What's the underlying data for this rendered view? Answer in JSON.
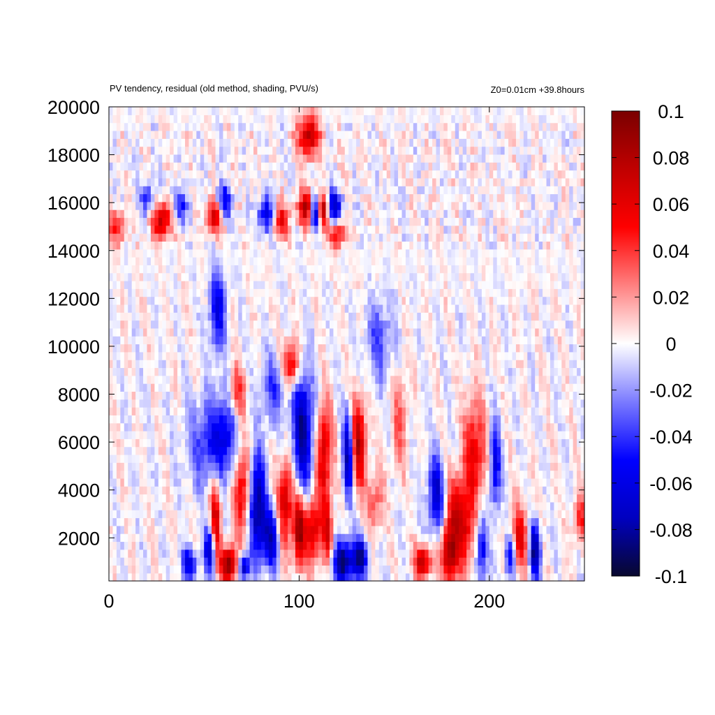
{
  "chart_data": {
    "type": "heatmap",
    "title": "PV tendency, residual (old method, shading, PVU/s)",
    "annotation": "Z0=0.01cm   +39.8hours",
    "xlabel": "",
    "ylabel": "",
    "xlim": [
      0,
      250
    ],
    "ylim": [
      200,
      20000
    ],
    "x_ticks": [
      0,
      100,
      200
    ],
    "y_ticks": [
      2000,
      4000,
      6000,
      8000,
      10000,
      12000,
      14000,
      16000,
      18000,
      20000
    ],
    "colorbar": {
      "range": [
        -0.1,
        0.1
      ],
      "ticks": [
        "0.1",
        "0.08",
        "0.06",
        "0.04",
        "0.02",
        "0",
        "-0.02",
        "-0.04",
        "-0.06",
        "-0.08",
        "-0.1"
      ],
      "colormap": [
        "#08082e",
        "#0000c0",
        "#0000ff",
        "#7b7bff",
        "#ffffff",
        "#ff8080",
        "#ff0000",
        "#c00000",
        "#7a0000"
      ]
    },
    "grid": {
      "nx": 125,
      "ny": 60,
      "features": [
        {
          "x": 105,
          "y": 18800,
          "sx": 4,
          "sy": 600,
          "v": 0.08
        },
        {
          "x": 20,
          "y": 16200,
          "sx": 3,
          "sy": 500,
          "v": -0.04
        },
        {
          "x": 28,
          "y": 15300,
          "sx": 4,
          "sy": 500,
          "v": 0.07
        },
        {
          "x": 37,
          "y": 15800,
          "sx": 3,
          "sy": 500,
          "v": -0.05
        },
        {
          "x": 56,
          "y": 15500,
          "sx": 3,
          "sy": 500,
          "v": 0.08
        },
        {
          "x": 60,
          "y": 16000,
          "sx": 3,
          "sy": 500,
          "v": -0.07
        },
        {
          "x": 83,
          "y": 15500,
          "sx": 3,
          "sy": 500,
          "v": -0.07
        },
        {
          "x": 90,
          "y": 15300,
          "sx": 3,
          "sy": 500,
          "v": 0.06
        },
        {
          "x": 104,
          "y": 15800,
          "sx": 3,
          "sy": 500,
          "v": 0.09
        },
        {
          "x": 108,
          "y": 15600,
          "sx": 2,
          "sy": 500,
          "v": -0.09
        },
        {
          "x": 113,
          "y": 15700,
          "sx": 2,
          "sy": 500,
          "v": 0.09
        },
        {
          "x": 118,
          "y": 15800,
          "sx": 3,
          "sy": 500,
          "v": -0.08
        },
        {
          "x": 120,
          "y": 14700,
          "sx": 3,
          "sy": 400,
          "v": 0.06
        },
        {
          "x": 4,
          "y": 15000,
          "sx": 3,
          "sy": 500,
          "v": 0.05
        },
        {
          "x": 57,
          "y": 11500,
          "sx": 3,
          "sy": 1200,
          "v": -0.06
        },
        {
          "x": 53,
          "y": 6000,
          "sx": 8,
          "sy": 1300,
          "v": -0.045
        },
        {
          "x": 62,
          "y": 6500,
          "sx": 4,
          "sy": 1200,
          "v": -0.04
        },
        {
          "x": 96,
          "y": 9300,
          "sx": 3,
          "sy": 700,
          "v": 0.07
        },
        {
          "x": 102,
          "y": 6500,
          "sx": 4,
          "sy": 1800,
          "v": -0.08
        },
        {
          "x": 86,
          "y": 8200,
          "sx": 5,
          "sy": 1000,
          "v": -0.035
        },
        {
          "x": 67,
          "y": 8000,
          "sx": 3,
          "sy": 800,
          "v": 0.05
        },
        {
          "x": 113,
          "y": 5500,
          "sx": 3,
          "sy": 1500,
          "v": 0.07
        },
        {
          "x": 126,
          "y": 5500,
          "sx": 2,
          "sy": 1300,
          "v": -0.09
        },
        {
          "x": 131,
          "y": 6000,
          "sx": 3,
          "sy": 1300,
          "v": 0.08
        },
        {
          "x": 142,
          "y": 10300,
          "sx": 5,
          "sy": 1200,
          "v": -0.035
        },
        {
          "x": 78,
          "y": 3300,
          "sx": 3,
          "sy": 1500,
          "v": -0.09
        },
        {
          "x": 70,
          "y": 4000,
          "sx": 3,
          "sy": 1400,
          "v": 0.06
        },
        {
          "x": 56,
          "y": 2800,
          "sx": 2,
          "sy": 1200,
          "v": 0.07
        },
        {
          "x": 93,
          "y": 3500,
          "sx": 3,
          "sy": 1300,
          "v": 0.07
        },
        {
          "x": 100,
          "y": 2300,
          "sx": 2,
          "sy": 1000,
          "v": 0.09
        },
        {
          "x": 107,
          "y": 2300,
          "sx": 3,
          "sy": 1000,
          "v": 0.07
        },
        {
          "x": 85,
          "y": 2000,
          "sx": 3,
          "sy": 900,
          "v": -0.07
        },
        {
          "x": 115,
          "y": 2200,
          "sx": 2,
          "sy": 900,
          "v": 0.06
        },
        {
          "x": 123,
          "y": 1000,
          "sx": 4,
          "sy": 600,
          "v": -0.09
        },
        {
          "x": 132,
          "y": 1200,
          "sx": 3,
          "sy": 600,
          "v": -0.08
        },
        {
          "x": 63,
          "y": 900,
          "sx": 3,
          "sy": 500,
          "v": 0.1
        },
        {
          "x": 42,
          "y": 900,
          "sx": 3,
          "sy": 500,
          "v": -0.06
        },
        {
          "x": 53,
          "y": 1500,
          "sx": 2,
          "sy": 700,
          "v": -0.08
        },
        {
          "x": 71,
          "y": 800,
          "sx": 2,
          "sy": 400,
          "v": -0.08
        },
        {
          "x": 192,
          "y": 5500,
          "sx": 4,
          "sy": 1600,
          "v": 0.06
        },
        {
          "x": 203,
          "y": 5000,
          "sx": 2,
          "sy": 1300,
          "v": -0.06
        },
        {
          "x": 172,
          "y": 3800,
          "sx": 3,
          "sy": 1100,
          "v": -0.07
        },
        {
          "x": 179,
          "y": 1400,
          "sx": 3,
          "sy": 900,
          "v": 0.09
        },
        {
          "x": 187,
          "y": 2200,
          "sx": 3,
          "sy": 1100,
          "v": 0.06
        },
        {
          "x": 165,
          "y": 1000,
          "sx": 3,
          "sy": 500,
          "v": 0.08
        },
        {
          "x": 196,
          "y": 1500,
          "sx": 2,
          "sy": 900,
          "v": -0.06
        },
        {
          "x": 216,
          "y": 2000,
          "sx": 3,
          "sy": 900,
          "v": 0.06
        },
        {
          "x": 224,
          "y": 1500,
          "sx": 2,
          "sy": 800,
          "v": -0.09
        },
        {
          "x": 211,
          "y": 1200,
          "sx": 2,
          "sy": 600,
          "v": -0.06
        },
        {
          "x": 248,
          "y": 2800,
          "sx": 3,
          "sy": 700,
          "v": 0.04
        },
        {
          "x": 140,
          "y": 3500,
          "sx": 3,
          "sy": 900,
          "v": 0.035
        },
        {
          "x": 153,
          "y": 7000,
          "sx": 3,
          "sy": 1400,
          "v": 0.03
        },
        {
          "x": 182,
          "y": 3500,
          "sx": 3,
          "sy": 900,
          "v": 0.05
        }
      ]
    }
  }
}
